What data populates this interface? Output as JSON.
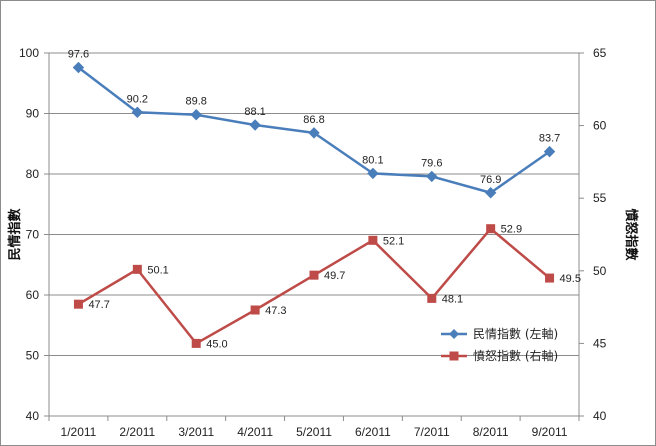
{
  "chart_data": {
    "type": "line",
    "categories": [
      "1/2011",
      "2/2011",
      "3/2011",
      "4/2011",
      "5/2011",
      "6/2011",
      "7/2011",
      "8/2011",
      "9/2011"
    ],
    "series": [
      {
        "name": "民情指數 (左軸)",
        "axis": "left",
        "color": "#4a7ebb",
        "marker": "diamond",
        "values": [
          97.6,
          90.2,
          89.8,
          88.1,
          86.8,
          80.1,
          79.6,
          76.9,
          83.7
        ],
        "labels": [
          "97.6",
          "90.2",
          "89.8",
          "88.1",
          "86.8",
          "80.1",
          "79.6",
          "76.9",
          "83.7"
        ]
      },
      {
        "name": "憤怒指數 (右軸)",
        "axis": "right",
        "color": "#be4b48",
        "marker": "square",
        "values": [
          47.7,
          50.1,
          45.0,
          47.3,
          49.7,
          52.1,
          48.1,
          52.9,
          49.5
        ],
        "labels": [
          "47.7",
          "50.1",
          "45.0",
          "47.3",
          "49.7",
          "52.1",
          "48.1",
          "52.9",
          "49.5"
        ]
      }
    ],
    "ylabel": "民情指數",
    "y2label": "憤怒指數",
    "ylim": [
      40,
      100
    ],
    "y2lim": [
      40,
      65
    ],
    "yticks": [
      "40",
      "50",
      "60",
      "70",
      "80",
      "90",
      "100"
    ],
    "y2ticks": [
      "40",
      "45",
      "50",
      "55",
      "60",
      "65"
    ],
    "grid": true,
    "gridColor": "#8c8c8c",
    "legend": "bottom-right"
  }
}
